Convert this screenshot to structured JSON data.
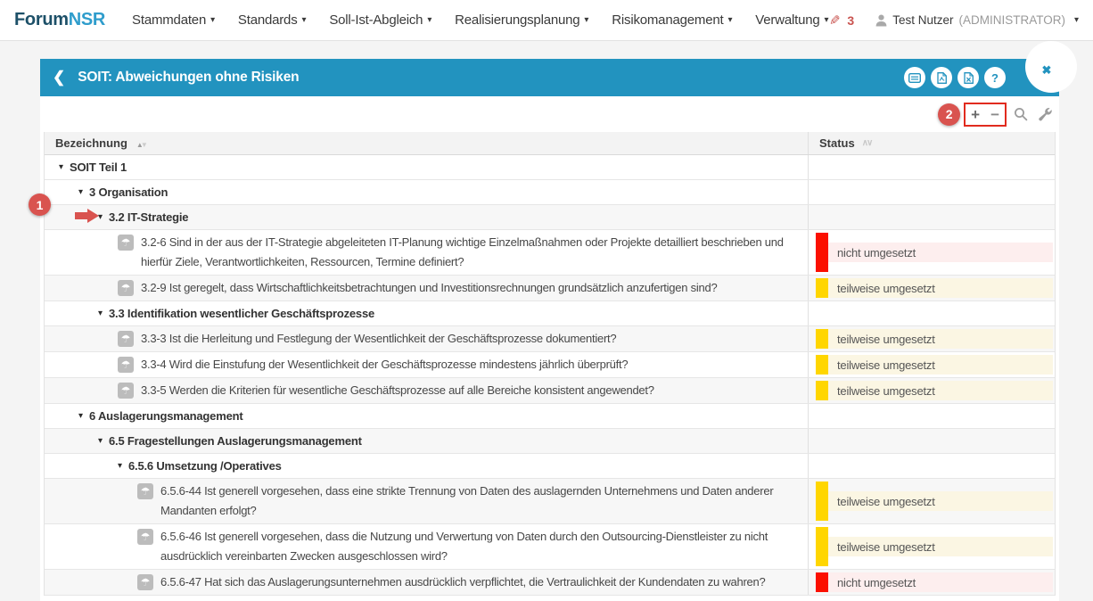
{
  "nav": {
    "logo": {
      "part1": "Forum",
      "part2": "NSR"
    },
    "items": [
      {
        "label": "Stammdaten"
      },
      {
        "label": "Standards"
      },
      {
        "label": "Soll-Ist-Abgleich"
      },
      {
        "label": "Realisierungsplanung"
      },
      {
        "label": "Risikomanagement"
      },
      {
        "label": "Verwaltung"
      }
    ],
    "edit_count": "3",
    "user": {
      "name": "Test Nutzer",
      "role": "(ADMINISTRATOR)"
    }
  },
  "panel": {
    "title": "SOIT: Abweichungen ohne Risiken",
    "help_glyph": "?"
  },
  "toolbar": {
    "expand_glyph": "+",
    "collapse_glyph": "−"
  },
  "icons": {
    "share": "❮",
    "close": "✖",
    "pencil": "✎",
    "caret_down": "▾",
    "tree_caret": "▾",
    "umbrella": "☂",
    "sort_asc": "▲",
    "sort_desc": "▼",
    "chevrons": "∧∨"
  },
  "annotations": {
    "one": "1",
    "two": "2"
  },
  "colors": {
    "accent_blue": "#2293bf",
    "annotation_red": "#d9534f",
    "status_red_bar": "#fb1000",
    "status_red_bg": "#fdeeee",
    "status_yellow_bar": "#ffd600",
    "status_yellow_bg": "#fbf6e3"
  },
  "status_styles": {
    "nicht umgesetzt": {
      "bar": "#fb1000",
      "bg": "#fdeeee"
    },
    "teilweise umgesetzt": {
      "bar": "#ffd600",
      "bg": "#fbf6e3"
    }
  },
  "table": {
    "columns": [
      {
        "label": "Bezeichnung"
      },
      {
        "label": "Status"
      }
    ],
    "rows": [
      {
        "kind": "group",
        "level": 0,
        "label": "SOIT Teil 1"
      },
      {
        "kind": "group",
        "level": 1,
        "label": "3 Organisation"
      },
      {
        "kind": "group",
        "level": 2,
        "label": "3.2 IT-Strategie"
      },
      {
        "kind": "question",
        "level": 3,
        "label": "3.2-6 Sind in der aus der IT-Strategie abgeleiteten IT-Planung wichtige Einzelmaßnahmen oder Projekte detailliert beschrieben und hierfür Ziele, Verantwortlichkeiten, Ressourcen, Termine definiert?",
        "status": "nicht umgesetzt"
      },
      {
        "kind": "question",
        "level": 3,
        "label": "3.2-9 Ist geregelt, dass Wirtschaftlichkeitsbetrachtungen und Investitionsrechnungen grundsätzlich anzufertigen sind?",
        "status": "teilweise umgesetzt"
      },
      {
        "kind": "group",
        "level": 2,
        "label": "3.3 Identifikation wesentlicher Geschäftsprozesse"
      },
      {
        "kind": "question",
        "level": 3,
        "label": "3.3-3 Ist die Herleitung und Festlegung der Wesentlichkeit der Geschäftsprozesse dokumentiert?",
        "status": "teilweise umgesetzt"
      },
      {
        "kind": "question",
        "level": 3,
        "label": "3.3-4 Wird die Einstufung der Wesentlichkeit der Geschäftsprozesse mindestens jährlich überprüft?",
        "status": "teilweise umgesetzt"
      },
      {
        "kind": "question",
        "level": 3,
        "label": "3.3-5 Werden die Kriterien für wesentliche Geschäftsprozesse auf alle Bereiche konsistent angewendet?",
        "status": "teilweise umgesetzt"
      },
      {
        "kind": "group",
        "level": 1,
        "label": "6 Auslagerungsmanagement"
      },
      {
        "kind": "group",
        "level": 2,
        "label": "6.5 Fragestellungen Auslagerungsmanagement"
      },
      {
        "kind": "group",
        "level": 3,
        "label": "6.5.6 Umsetzung /Operatives"
      },
      {
        "kind": "question",
        "level": 4,
        "label": "6.5.6-44 Ist generell vorgesehen, dass eine strikte Trennung von Daten des auslagernden Unternehmens und Daten anderer Mandanten erfolgt?",
        "status": "teilweise umgesetzt"
      },
      {
        "kind": "question",
        "level": 4,
        "label": "6.5.6-46 Ist generell vorgesehen, dass die Nutzung und Verwertung von Daten durch den Outsourcing-Dienstleister zu nicht ausdrücklich vereinbarten Zwecken ausgeschlossen wird?",
        "status": "teilweise umgesetzt"
      },
      {
        "kind": "question",
        "level": 4,
        "label": "6.5.6-47 Hat sich das Auslagerungsunternehmen ausdrücklich verpflichtet, die Vertraulichkeit der Kundendaten zu wahren?",
        "status": "nicht umgesetzt"
      }
    ]
  }
}
